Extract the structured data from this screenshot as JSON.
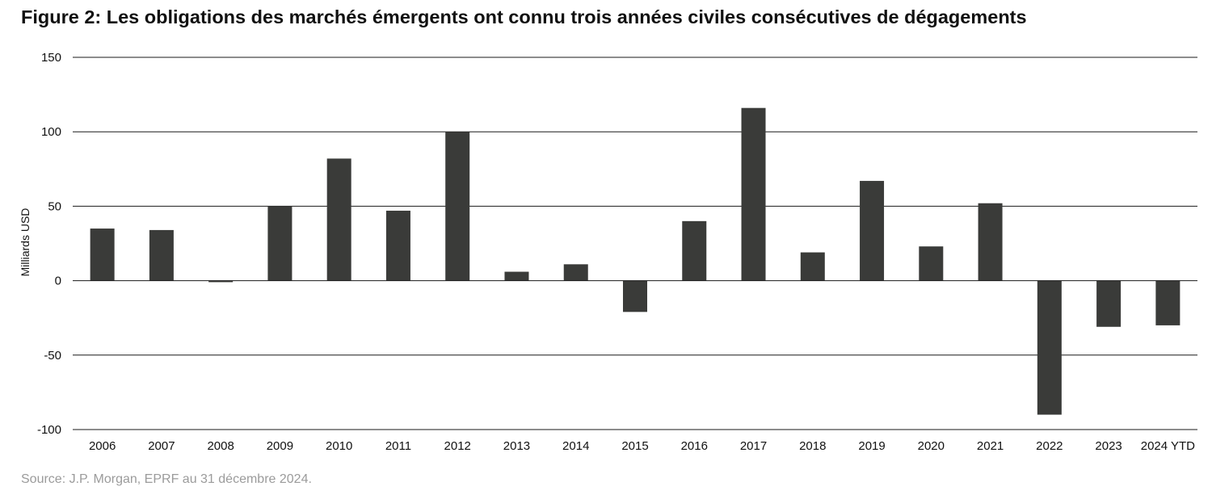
{
  "header": {
    "title": "Figure 2: Les obligations des marchés émergents ont connu trois années civiles consécutives de dégagements"
  },
  "footer": {
    "source": "Source: J.P. Morgan, EPRF au 31 décembre 2024."
  },
  "chart_data": {
    "type": "bar",
    "title": "Figure 2: Les obligations des marchés émergents ont connu trois années civiles consécutives de dégagements",
    "xlabel": "",
    "ylabel": "Milliards USD",
    "ylim": [
      -100,
      150
    ],
    "yticks": [
      150,
      100,
      50,
      0,
      -50,
      -100
    ],
    "grid": true,
    "legend": "none",
    "bar_color": "#3a3b39",
    "categories": [
      "2006",
      "2007",
      "2008",
      "2009",
      "2010",
      "2011",
      "2012",
      "2013",
      "2014",
      "2015",
      "2016",
      "2017",
      "2018",
      "2019",
      "2020",
      "2021",
      "2022",
      "2023",
      "2024 YTD"
    ],
    "values": [
      35,
      34,
      -1,
      50,
      82,
      47,
      100,
      6,
      11,
      -21,
      40,
      116,
      19,
      67,
      23,
      52,
      -90,
      -31,
      -30
    ]
  }
}
